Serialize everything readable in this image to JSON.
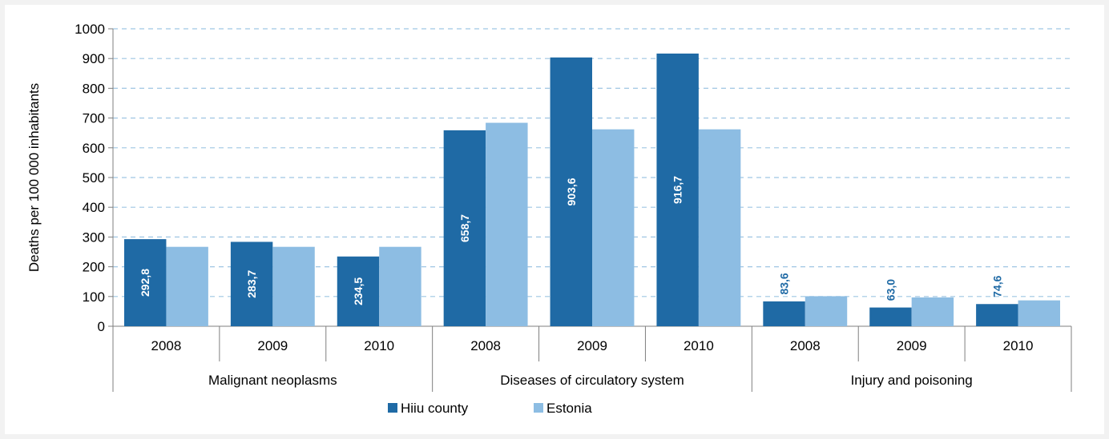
{
  "chart_data": {
    "type": "bar",
    "ylabel": "Deaths per 100 000 inhabitants",
    "ylim": [
      0,
      1000
    ],
    "yticks": [
      0,
      100,
      200,
      300,
      400,
      500,
      600,
      700,
      800,
      900,
      1000
    ],
    "groups": [
      {
        "label": "Malignant neoplasms",
        "years": [
          "2008",
          "2009",
          "2010"
        ]
      },
      {
        "label": "Diseases of circulatory system",
        "years": [
          "2008",
          "2009",
          "2010"
        ]
      },
      {
        "label": "Injury and poisoning",
        "years": [
          "2008",
          "2009",
          "2010"
        ]
      }
    ],
    "series": [
      {
        "name": "Hiiu county",
        "color": "#1f6aa5",
        "values": [
          292.8,
          283.7,
          234.5,
          658.7,
          903.6,
          916.7,
          83.6,
          63.0,
          74.6
        ],
        "labels": [
          "292,8",
          "283,7",
          "234,5",
          "658,7",
          "903,6",
          "916,7",
          "83,6",
          "63,0",
          "74,6"
        ]
      },
      {
        "name": "Estonia",
        "color": "#8dbde3",
        "values": [
          267,
          267,
          267,
          684,
          662,
          662,
          101,
          97,
          87
        ]
      }
    ],
    "grid": true,
    "legend_position": "bottom"
  }
}
